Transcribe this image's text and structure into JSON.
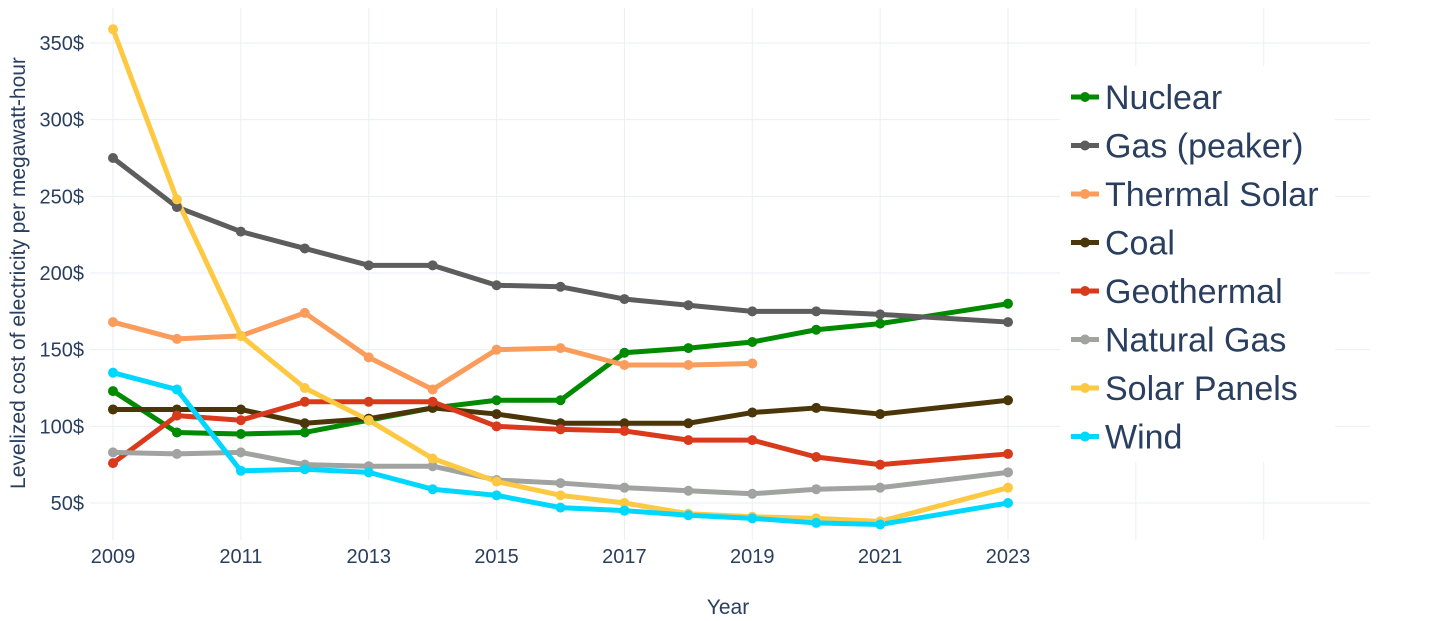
{
  "chart_data": {
    "type": "line",
    "title": "",
    "xlabel": "Year",
    "ylabel": "Levelized cost of electricity per megawatt-hour",
    "xlim": [
      2009,
      2023
    ],
    "ylim": [
      28,
      365
    ],
    "x_ticks": [
      2009,
      2011,
      2013,
      2015,
      2017,
      2019,
      2021,
      2023
    ],
    "x_tick_labels": [
      "2009",
      "2011",
      "2013",
      "2015",
      "2017",
      "2019",
      "2021",
      "2023"
    ],
    "y_ticks": [
      50,
      100,
      150,
      200,
      250,
      300,
      350
    ],
    "y_tick_labels": [
      "50$",
      "100$",
      "150$",
      "200$",
      "250$",
      "300$",
      "350$"
    ],
    "grid": true,
    "legend_position": "right",
    "series": [
      {
        "name": "Nuclear",
        "color": "#008a00",
        "x": [
          2009,
          2010,
          2011,
          2012,
          2013,
          2014,
          2015,
          2016,
          2017,
          2018,
          2019,
          2020,
          2021,
          2023
        ],
        "y": [
          123,
          96,
          95,
          96,
          104,
          112,
          117,
          117,
          148,
          151,
          155,
          163,
          167,
          180
        ]
      },
      {
        "name": "Gas (peaker)",
        "color": "#5d5d5d",
        "x": [
          2009,
          2010,
          2011,
          2012,
          2013,
          2014,
          2015,
          2016,
          2017,
          2018,
          2019,
          2020,
          2021,
          2023
        ],
        "y": [
          275,
          243,
          227,
          216,
          205,
          205,
          192,
          191,
          183,
          179,
          175,
          175,
          173,
          168
        ]
      },
      {
        "name": "Thermal Solar",
        "color": "#fa9c5c",
        "x": [
          2009,
          2010,
          2011,
          2012,
          2013,
          2014,
          2015,
          2016,
          2017,
          2018,
          2019
        ],
        "y": [
          168,
          157,
          159,
          174,
          145,
          124,
          150,
          151,
          140,
          140,
          141
        ]
      },
      {
        "name": "Coal",
        "color": "#4a3608",
        "x": [
          2009,
          2010,
          2011,
          2012,
          2013,
          2014,
          2015,
          2016,
          2017,
          2018,
          2019,
          2020,
          2021,
          2023
        ],
        "y": [
          111,
          111,
          111,
          102,
          105,
          112,
          108,
          102,
          102,
          102,
          109,
          112,
          108,
          117
        ]
      },
      {
        "name": "Geothermal",
        "color": "#da3a1c",
        "x": [
          2009,
          2010,
          2011,
          2012,
          2013,
          2014,
          2015,
          2016,
          2017,
          2018,
          2019,
          2020,
          2021,
          2023
        ],
        "y": [
          76,
          107,
          104,
          116,
          116,
          116,
          100,
          98,
          97,
          91,
          91,
          80,
          75,
          82
        ]
      },
      {
        "name": "Natural Gas",
        "color": "#a0a3a0",
        "x": [
          2009,
          2010,
          2011,
          2012,
          2013,
          2014,
          2015,
          2016,
          2017,
          2018,
          2019,
          2020,
          2021,
          2023
        ],
        "y": [
          83,
          82,
          83,
          75,
          74,
          74,
          65,
          63,
          60,
          58,
          56,
          59,
          60,
          70
        ]
      },
      {
        "name": "Solar Panels",
        "color": "#fdc943",
        "x": [
          2009,
          2010,
          2011,
          2012,
          2013,
          2014,
          2015,
          2016,
          2017,
          2018,
          2019,
          2020,
          2021,
          2023
        ],
        "y": [
          359,
          248,
          159,
          125,
          104,
          79,
          64,
          55,
          50,
          43,
          41,
          40,
          38,
          60
        ]
      },
      {
        "name": "Wind",
        "color": "#00d7ff",
        "x": [
          2009,
          2010,
          2011,
          2012,
          2013,
          2014,
          2015,
          2016,
          2017,
          2018,
          2019,
          2020,
          2021,
          2023
        ],
        "y": [
          135,
          124,
          71,
          72,
          70,
          59,
          55,
          47,
          45,
          42,
          40,
          37,
          36,
          50
        ]
      }
    ]
  }
}
